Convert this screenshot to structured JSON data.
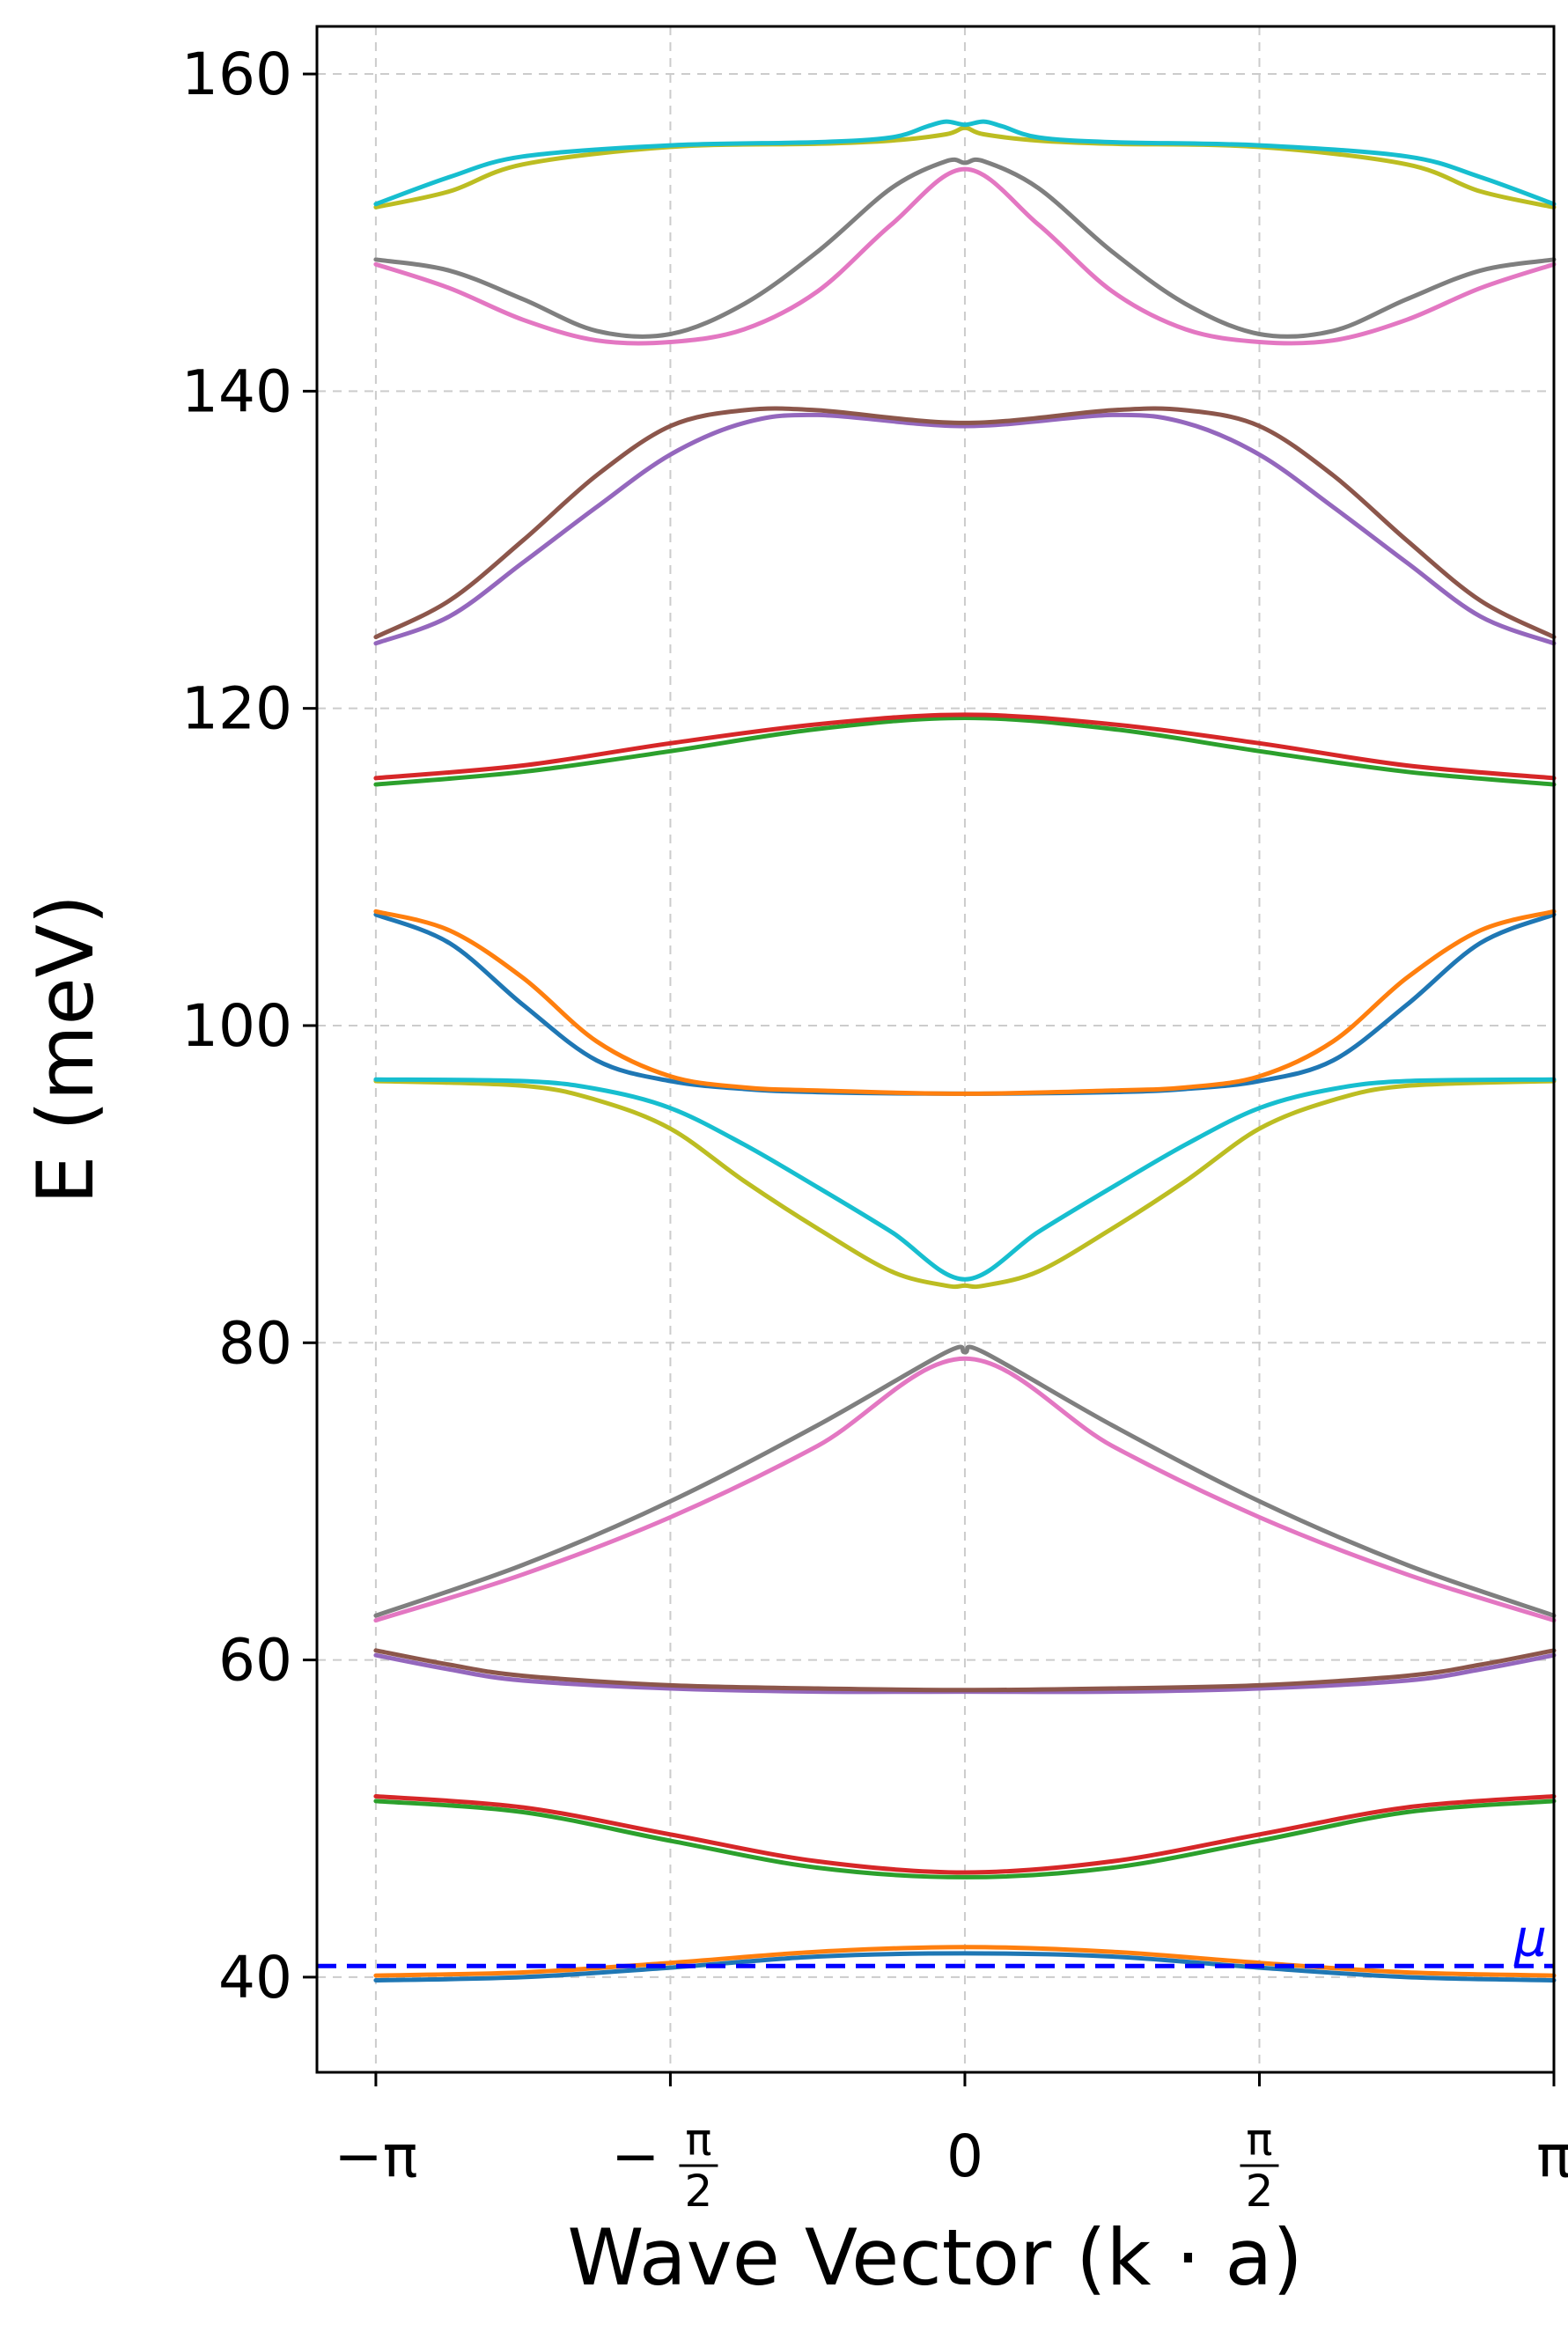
{
  "chart_data": {
    "type": "line",
    "xlabel": "Wave Vector (k · a)",
    "ylabel": "E (meV)",
    "x_range": [
      -3.4558,
      3.1416
    ],
    "ylim": [
      34,
      163
    ],
    "grid": true,
    "x_ticks": [
      {
        "value": -3.14159,
        "label": "−π"
      },
      {
        "value": -1.5708,
        "label": "−π/2"
      },
      {
        "value": 0,
        "label": "0"
      },
      {
        "value": 1.5708,
        "label": "π/2"
      },
      {
        "value": 3.14159,
        "label": "π"
      }
    ],
    "y_ticks": [
      40,
      60,
      80,
      100,
      120,
      140,
      160
    ],
    "chemical_potential": {
      "label": "μ",
      "value": 40.7,
      "color": "#0000ff"
    },
    "series": [
      {
        "color": "#1f77b4",
        "x": [
          -3.1416,
          -2.3562,
          -1.5708,
          -0.7854,
          0,
          0.7854,
          1.5708,
          2.3562,
          3.1416
        ],
        "y": [
          39.8,
          40.0,
          40.6,
          41.3,
          41.5,
          41.3,
          40.6,
          40.0,
          39.8
        ]
      },
      {
        "color": "#ff7f0e",
        "x": [
          -3.1416,
          -2.3562,
          -1.5708,
          -0.7854,
          0,
          0.7854,
          1.5708,
          2.3562,
          3.1416
        ],
        "y": [
          40.1,
          40.3,
          40.9,
          41.6,
          41.9,
          41.6,
          40.9,
          40.3,
          40.1
        ]
      },
      {
        "color": "#2ca02c",
        "x": [
          -3.1416,
          -2.3562,
          -1.5708,
          -0.7854,
          0,
          0.7854,
          1.5708,
          2.3562,
          3.1416
        ],
        "y": [
          51.1,
          50.4,
          48.6,
          46.9,
          46.3,
          46.9,
          48.6,
          50.4,
          51.1
        ]
      },
      {
        "color": "#d62728",
        "x": [
          -3.1416,
          -2.3562,
          -1.5708,
          -0.7854,
          0,
          0.7854,
          1.5708,
          2.3562,
          3.1416
        ],
        "y": [
          51.4,
          50.7,
          49.0,
          47.3,
          46.6,
          47.3,
          49.0,
          50.7,
          51.4
        ]
      },
      {
        "color": "#9467bd",
        "x": [
          -3.1416,
          -2.7489,
          -2.3562,
          -1.5708,
          -0.7854,
          0,
          0.7854,
          1.5708,
          2.3562,
          2.7489,
          3.1416
        ],
        "y": [
          60.3,
          59.4,
          58.7,
          58.2,
          58.0,
          58.0,
          58.0,
          58.2,
          58.7,
          59.4,
          60.3
        ]
      },
      {
        "color": "#8c564b",
        "x": [
          -3.1416,
          -2.7489,
          -2.3562,
          -1.5708,
          -0.7854,
          0,
          0.7854,
          1.5708,
          2.3562,
          2.7489,
          3.1416
        ],
        "y": [
          60.6,
          59.7,
          59.0,
          58.4,
          58.2,
          58.1,
          58.2,
          58.4,
          59.0,
          59.7,
          60.6
        ]
      },
      {
        "color": "#e377c2",
        "x": [
          -3.1416,
          -2.3562,
          -1.5708,
          -0.7854,
          0,
          0.7854,
          1.5708,
          2.3562,
          3.1416
        ],
        "y": [
          62.5,
          65.4,
          69.0,
          73.5,
          79.0,
          73.5,
          69.0,
          65.4,
          62.5
        ]
      },
      {
        "color": "#7f7f7f",
        "x": [
          -3.1416,
          -2.3562,
          -1.5708,
          -0.7854,
          -0.1,
          0,
          0.1,
          0.7854,
          1.5708,
          2.3562,
          3.1416
        ],
        "y": [
          62.8,
          66.0,
          70.0,
          74.8,
          79.4,
          79.4,
          79.4,
          74.8,
          70.0,
          66.0,
          62.8
        ]
      },
      {
        "color": "#bcbd22",
        "x": [
          -3.1416,
          -2.3562,
          -1.9635,
          -1.5708,
          -1.1781,
          -0.7854,
          -0.3927,
          -0.1,
          0,
          0.1,
          0.3927,
          0.7854,
          1.1781,
          1.5708,
          1.9635,
          2.3562,
          3.1416
        ],
        "y": [
          96.5,
          96.2,
          95.3,
          93.5,
          90.2,
          87.2,
          84.5,
          83.6,
          83.6,
          83.6,
          84.5,
          87.2,
          90.2,
          93.5,
          95.3,
          96.2,
          96.5
        ]
      },
      {
        "color": "#17becf",
        "x": [
          -3.1416,
          -2.3562,
          -1.9635,
          -1.5708,
          -1.1781,
          -0.7854,
          -0.3927,
          0,
          0.3927,
          0.7854,
          1.1781,
          1.5708,
          1.9635,
          2.3562,
          3.1416
        ],
        "y": [
          96.6,
          96.5,
          96.0,
          94.8,
          92.5,
          89.8,
          87.0,
          84.0,
          87.0,
          89.8,
          92.5,
          94.8,
          96.0,
          96.5,
          96.6
        ]
      },
      {
        "color": "#1f77b4",
        "x": [
          -3.1416,
          -2.7489,
          -2.3562,
          -1.9635,
          -1.5708,
          -1.1781,
          -0.7854,
          0,
          0.7854,
          1.1781,
          1.5708,
          1.9635,
          2.3562,
          2.7489,
          3.1416
        ],
        "y": [
          107.0,
          105.2,
          101.3,
          97.8,
          96.5,
          96.0,
          95.8,
          95.7,
          95.8,
          96.0,
          96.5,
          97.8,
          101.3,
          105.2,
          107.0
        ]
      },
      {
        "color": "#ff7f0e",
        "x": [
          -3.1416,
          -2.7489,
          -2.3562,
          -1.9635,
          -1.5708,
          -1.1781,
          -0.7854,
          0,
          0.7854,
          1.1781,
          1.5708,
          1.9635,
          2.3562,
          2.7489,
          3.1416
        ],
        "y": [
          107.2,
          106.0,
          103.0,
          99.0,
          96.8,
          96.1,
          95.9,
          95.7,
          95.9,
          96.1,
          96.8,
          99.0,
          103.0,
          106.0,
          107.2
        ]
      },
      {
        "color": "#2ca02c",
        "x": [
          -3.1416,
          -2.3562,
          -1.5708,
          -0.7854,
          0,
          0.7854,
          1.5708,
          2.3562,
          3.1416
        ],
        "y": [
          115.2,
          116.0,
          117.3,
          118.7,
          119.4,
          118.7,
          117.3,
          116.0,
          115.2
        ]
      },
      {
        "color": "#d62728",
        "x": [
          -3.1416,
          -2.3562,
          -1.5708,
          -0.7854,
          0,
          0.7854,
          1.5708,
          2.3562,
          3.1416
        ],
        "y": [
          115.6,
          116.4,
          117.8,
          119.0,
          119.6,
          119.0,
          117.8,
          116.4,
          115.6
        ]
      },
      {
        "color": "#9467bd",
        "x": [
          -3.1416,
          -2.7489,
          -2.3562,
          -1.9635,
          -1.5708,
          -1.1781,
          -0.7854,
          0,
          0.7854,
          1.1781,
          1.5708,
          1.9635,
          2.3562,
          2.7489,
          3.1416
        ],
        "y": [
          124.1,
          125.8,
          129.2,
          132.7,
          136.0,
          138.0,
          138.5,
          137.8,
          138.5,
          138.0,
          136.0,
          132.7,
          129.2,
          125.8,
          124.1
        ]
      },
      {
        "color": "#8c564b",
        "x": [
          -3.1416,
          -2.7489,
          -2.3562,
          -1.9635,
          -1.5708,
          -1.1781,
          -0.7854,
          0,
          0.7854,
          1.1781,
          1.5708,
          1.9635,
          2.3562,
          2.7489,
          3.1416
        ],
        "y": [
          124.5,
          126.8,
          130.6,
          134.7,
          137.8,
          138.8,
          138.8,
          138.0,
          138.8,
          138.8,
          137.8,
          134.7,
          130.6,
          126.8,
          124.5
        ]
      },
      {
        "color": "#e377c2",
        "x": [
          -3.1416,
          -2.7489,
          -2.3562,
          -1.9635,
          -1.5708,
          -1.1781,
          -0.7854,
          -0.3927,
          0,
          0.3927,
          0.7854,
          1.1781,
          1.5708,
          1.9635,
          2.3562,
          2.7489,
          3.1416
        ],
        "y": [
          148.0,
          146.5,
          144.5,
          143.2,
          143.1,
          143.9,
          146.3,
          150.5,
          154.0,
          150.5,
          146.3,
          143.9,
          143.1,
          143.2,
          144.5,
          146.5,
          148.0
        ]
      },
      {
        "color": "#7f7f7f",
        "x": [
          -3.1416,
          -2.7489,
          -2.3562,
          -1.9635,
          -1.5708,
          -1.1781,
          -0.7854,
          -0.3927,
          -0.1,
          0,
          0.1,
          0.3927,
          0.7854,
          1.1781,
          1.5708,
          1.9635,
          2.3562,
          2.7489,
          3.1416
        ],
        "y": [
          148.3,
          147.6,
          145.8,
          143.8,
          143.6,
          145.5,
          148.8,
          152.8,
          154.5,
          154.4,
          154.5,
          152.8,
          148.8,
          145.5,
          143.6,
          143.8,
          145.8,
          147.6,
          148.3
        ]
      },
      {
        "color": "#bcbd22",
        "x": [
          -3.1416,
          -2.7489,
          -2.3562,
          -1.5708,
          -0.7854,
          -0.3927,
          -0.1,
          0,
          0.1,
          0.3927,
          0.7854,
          1.5708,
          2.3562,
          2.7489,
          3.1416
        ],
        "y": [
          151.6,
          152.6,
          154.3,
          155.4,
          155.6,
          155.8,
          156.2,
          156.6,
          156.2,
          155.8,
          155.6,
          155.4,
          154.3,
          152.6,
          151.6
        ]
      },
      {
        "color": "#17becf",
        "x": [
          -3.1416,
          -2.7489,
          -2.3562,
          -1.5708,
          -0.7854,
          -0.3927,
          -0.2,
          -0.1,
          0,
          0.1,
          0.2,
          0.3927,
          0.7854,
          1.5708,
          2.3562,
          2.7489,
          3.1416
        ],
        "y": [
          151.8,
          153.5,
          154.8,
          155.5,
          155.7,
          156.0,
          156.7,
          157.0,
          156.8,
          157.0,
          156.7,
          156.0,
          155.7,
          155.5,
          154.8,
          153.5,
          151.8
        ]
      }
    ]
  }
}
